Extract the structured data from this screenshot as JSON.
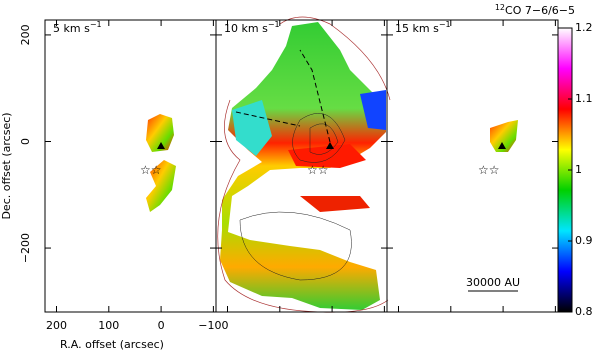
{
  "chart_data": {
    "type": "map",
    "title_isotope": "12",
    "title": "CO 7−6/6−5",
    "x_label": "R.A. offset (arcsec)",
    "y_label": "Dec. offset (arcsec)",
    "xlim": [
      222,
      -105
    ],
    "xticks": [
      200,
      100,
      0,
      {
        "value": -100,
        "label": "−100"
      }
    ],
    "ylim": [
      -320,
      228
    ],
    "yticks": [
      200,
      0,
      {
        "value": -200,
        "label": "−200"
      }
    ],
    "panels": [
      {
        "velocity": "5 km s",
        "velocity_exp": "−1"
      },
      {
        "velocity": "10 km s",
        "velocity_exp": "−1"
      },
      {
        "velocity": "15 km s",
        "velocity_exp": "−1"
      }
    ],
    "scale_bar": "30000 AU",
    "colorbar": {
      "lim": [
        0.8,
        1.2
      ],
      "ticks": [
        1.2,
        1.1,
        1,
        0.9,
        0.8
      ],
      "colors": [
        "#000000",
        "#0000ff",
        "#00e5ff",
        "#00d000",
        "#ffff00",
        "#ff0000",
        "#ff00ff",
        "#ffffff"
      ]
    }
  }
}
